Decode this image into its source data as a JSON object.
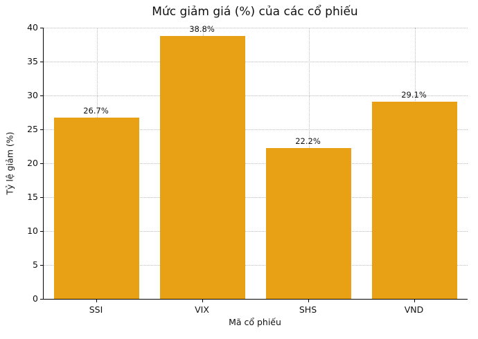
{
  "chart_data": {
    "type": "bar",
    "title": "Mức giảm giá (%) của các cổ phiếu",
    "xlabel": "Mã cổ phiếu",
    "ylabel": "Tỷ lệ giảm (%)",
    "categories": [
      "SSI",
      "VIX",
      "SHS",
      "VND"
    ],
    "values": [
      26.7,
      38.8,
      22.2,
      29.1
    ],
    "value_labels": [
      "26.7%",
      "38.8%",
      "22.2%",
      "29.1%"
    ],
    "ylim": [
      0,
      40
    ],
    "yticks": [
      0,
      5,
      10,
      15,
      20,
      25,
      30,
      35,
      40
    ],
    "bar_color": "#E8A114",
    "background_color": "#ffffff",
    "grid": "dotted gray gridlines on both axes",
    "legend": "none",
    "bar_width_fraction": 0.8
  }
}
